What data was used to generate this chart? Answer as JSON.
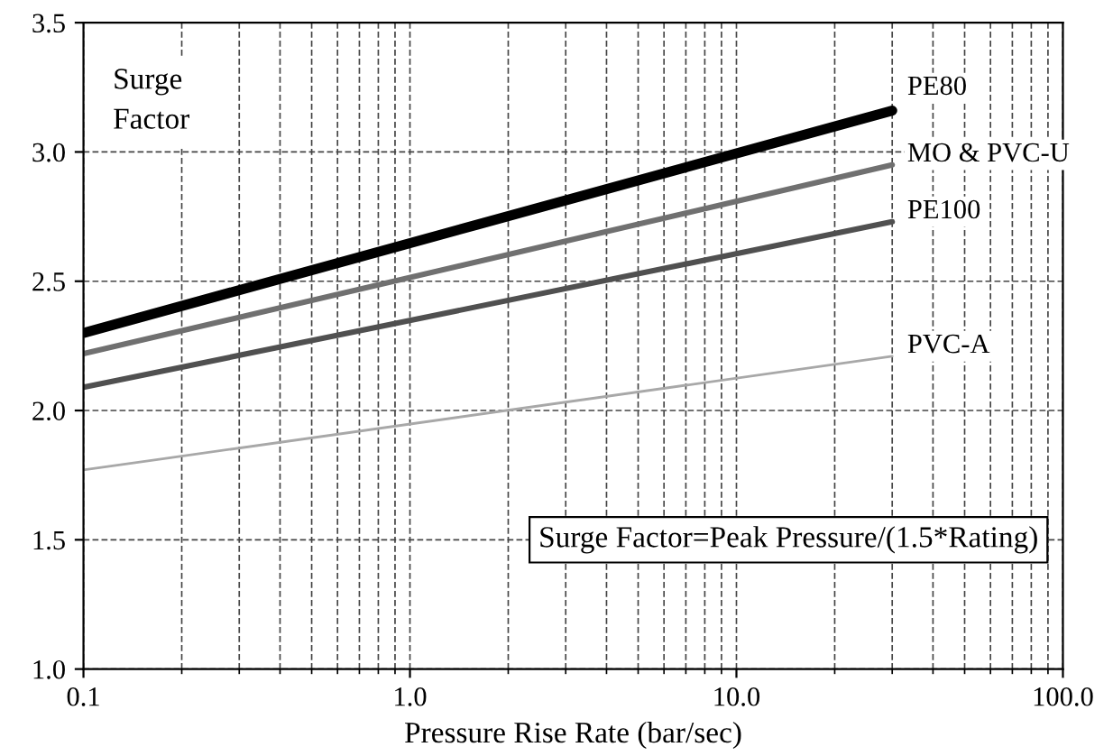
{
  "chart_data": {
    "type": "line",
    "xlabel": "Pressure Rise Rate (bar/sec)",
    "ylabel": "Surge\nFactor",
    "log": "x",
    "x": [
      0.1,
      30
    ],
    "series": [
      {
        "name": "PE80",
        "color": "#000000",
        "values": [
          2.3,
          3.16
        ]
      },
      {
        "name": "MO & PVC-U",
        "color": "#707070",
        "values": [
          2.22,
          2.95
        ]
      },
      {
        "name": "PE100",
        "color": "#505050",
        "values": [
          2.09,
          2.73
        ]
      },
      {
        "name": "PVC-A",
        "color": "#a8a8a8",
        "values": [
          1.77,
          2.21
        ]
      }
    ],
    "xlim": [
      0.1,
      100
    ],
    "xticks": [
      0.1,
      {
        "value": 1,
        "label": "1.0"
      },
      {
        "value": 10,
        "label": "10.0"
      },
      {
        "value": 100,
        "label": "100.0"
      }
    ],
    "ylim": [
      1.0,
      3.5
    ],
    "yticks": [
      {
        "value": 1.0,
        "label": "1.0"
      },
      {
        "value": 1.5,
        "label": "1.5"
      },
      {
        "value": 2.0,
        "label": "2.0"
      },
      {
        "value": 2.5,
        "label": "2.5"
      },
      {
        "value": 3.0,
        "label": "3.0"
      },
      {
        "value": 3.5,
        "label": "3.5"
      }
    ],
    "grid": true,
    "legend": false,
    "marker": "none",
    "line_style": "solid",
    "annotations": [
      "Surge Factor=Peak Pressure/(1.5*Rating)"
    ]
  }
}
